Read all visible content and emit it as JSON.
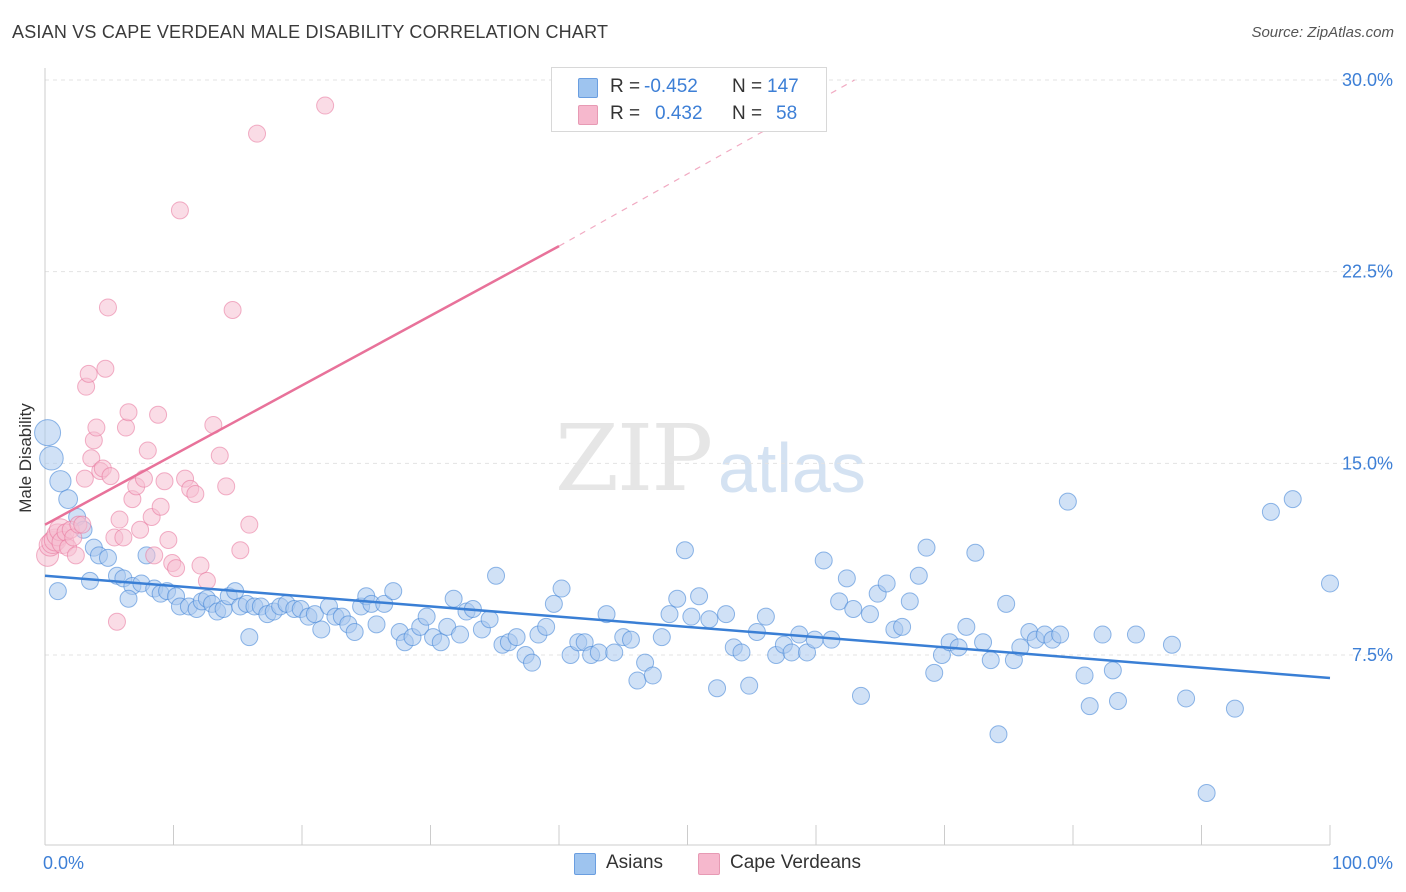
{
  "title": "ASIAN VS CAPE VERDEAN MALE DISABILITY CORRELATION CHART",
  "source": "Source: ZipAtlas.com",
  "watermark": {
    "main": "ZIP",
    "sub": "atlas"
  },
  "legend": [
    {
      "r_label": "R =",
      "r_value": "-0.452",
      "n_label": "N =",
      "n_value": "147",
      "color": "#9ec4ef"
    },
    {
      "r_label": "R =",
      "r_value": "0.432",
      "n_label": "N =",
      "n_value": "58",
      "color": "#f6b8cd"
    }
  ],
  "bottom_legend": [
    {
      "label": "Asians",
      "color": "#9ec4ef"
    },
    {
      "label": "Cape Verdeans",
      "color": "#f6b8cd"
    }
  ],
  "chart_data": {
    "type": "scatter",
    "title": "ASIAN VS CAPE VERDEAN MALE DISABILITY CORRELATION CHART",
    "xlabel": "",
    "ylabel": "Male Disability",
    "xlim": [
      0,
      100
    ],
    "ylim": [
      0,
      31
    ],
    "x_tick_labels": [
      "0.0%",
      "100.0%"
    ],
    "y_ticks": [
      7.5,
      15.0,
      22.5,
      30.0
    ],
    "y_tick_labels": [
      "7.5%",
      "15.0%",
      "22.5%",
      "30.0%"
    ],
    "grid": "horizontal dashed",
    "legend_position": "top-center",
    "series": [
      {
        "name": "Asians",
        "color": "#3a7fd5",
        "fill": "#a9c9ef",
        "r": -0.452,
        "n": 147,
        "trend": {
          "x": [
            0,
            100
          ],
          "y": [
            10.6,
            6.6
          ]
        },
        "points": [
          [
            0.2,
            16.2
          ],
          [
            0.5,
            15.2
          ],
          [
            1.2,
            14.3
          ],
          [
            1.8,
            13.6
          ],
          [
            2.5,
            12.9
          ],
          [
            3.0,
            12.4
          ],
          [
            3.8,
            11.7
          ],
          [
            4.2,
            11.4
          ],
          [
            4.9,
            11.3
          ],
          [
            5.6,
            10.6
          ],
          [
            6.1,
            10.5
          ],
          [
            6.8,
            10.2
          ],
          [
            7.5,
            10.3
          ],
          [
            7.9,
            11.4
          ],
          [
            8.5,
            10.1
          ],
          [
            9.0,
            9.9
          ],
          [
            9.5,
            10.0
          ],
          [
            10.2,
            9.8
          ],
          [
            10.5,
            9.4
          ],
          [
            11.2,
            9.4
          ],
          [
            11.8,
            9.3
          ],
          [
            12.2,
            9.6
          ],
          [
            12.6,
            9.7
          ],
          [
            13.0,
            9.5
          ],
          [
            13.4,
            9.2
          ],
          [
            13.9,
            9.3
          ],
          [
            14.3,
            9.8
          ],
          [
            14.8,
            10.0
          ],
          [
            15.2,
            9.4
          ],
          [
            15.7,
            9.5
          ],
          [
            16.3,
            9.4
          ],
          [
            16.8,
            9.4
          ],
          [
            17.3,
            9.1
          ],
          [
            17.8,
            9.2
          ],
          [
            18.3,
            9.4
          ],
          [
            18.8,
            9.5
          ],
          [
            19.4,
            9.3
          ],
          [
            19.9,
            9.3
          ],
          [
            20.5,
            9.0
          ],
          [
            21.0,
            9.1
          ],
          [
            21.5,
            8.5
          ],
          [
            22.1,
            9.4
          ],
          [
            22.6,
            9.0
          ],
          [
            23.1,
            9.0
          ],
          [
            23.6,
            8.7
          ],
          [
            24.1,
            8.4
          ],
          [
            24.6,
            9.4
          ],
          [
            25.0,
            9.8
          ],
          [
            25.4,
            9.5
          ],
          [
            25.8,
            8.7
          ],
          [
            26.4,
            9.5
          ],
          [
            27.1,
            10.0
          ],
          [
            27.6,
            8.4
          ],
          [
            28.0,
            8.0
          ],
          [
            28.6,
            8.2
          ],
          [
            29.2,
            8.6
          ],
          [
            29.7,
            9.0
          ],
          [
            30.2,
            8.2
          ],
          [
            30.8,
            8.0
          ],
          [
            31.3,
            8.6
          ],
          [
            31.8,
            9.7
          ],
          [
            32.3,
            8.3
          ],
          [
            32.8,
            9.2
          ],
          [
            33.3,
            9.3
          ],
          [
            34.0,
            8.5
          ],
          [
            34.6,
            8.9
          ],
          [
            35.1,
            10.6
          ],
          [
            35.6,
            7.9
          ],
          [
            36.1,
            8.0
          ],
          [
            36.7,
            8.2
          ],
          [
            37.4,
            7.5
          ],
          [
            37.9,
            7.2
          ],
          [
            38.4,
            8.3
          ],
          [
            39.0,
            8.6
          ],
          [
            39.6,
            9.5
          ],
          [
            40.2,
            10.1
          ],
          [
            40.9,
            7.5
          ],
          [
            41.5,
            8.0
          ],
          [
            42.0,
            8.0
          ],
          [
            42.5,
            7.5
          ],
          [
            43.1,
            7.6
          ],
          [
            43.7,
            9.1
          ],
          [
            44.3,
            7.6
          ],
          [
            45.0,
            8.2
          ],
          [
            45.6,
            8.1
          ],
          [
            46.1,
            6.5
          ],
          [
            46.7,
            7.2
          ],
          [
            47.3,
            6.7
          ],
          [
            48.0,
            8.2
          ],
          [
            48.6,
            9.1
          ],
          [
            49.2,
            9.7
          ],
          [
            49.8,
            11.6
          ],
          [
            50.3,
            9.0
          ],
          [
            50.9,
            9.8
          ],
          [
            51.7,
            8.9
          ],
          [
            52.3,
            6.2
          ],
          [
            53.0,
            9.1
          ],
          [
            53.6,
            7.8
          ],
          [
            54.2,
            7.6
          ],
          [
            54.8,
            6.3
          ],
          [
            55.4,
            8.4
          ],
          [
            56.1,
            9.0
          ],
          [
            56.9,
            7.5
          ],
          [
            57.5,
            7.9
          ],
          [
            58.1,
            7.6
          ],
          [
            58.7,
            8.3
          ],
          [
            59.3,
            7.6
          ],
          [
            59.9,
            8.1
          ],
          [
            60.6,
            11.2
          ],
          [
            61.2,
            8.1
          ],
          [
            61.8,
            9.6
          ],
          [
            62.4,
            10.5
          ],
          [
            62.9,
            9.3
          ],
          [
            63.5,
            5.9
          ],
          [
            64.2,
            9.1
          ],
          [
            64.8,
            9.9
          ],
          [
            65.5,
            10.3
          ],
          [
            66.1,
            8.5
          ],
          [
            66.7,
            8.6
          ],
          [
            67.3,
            9.6
          ],
          [
            68.0,
            10.6
          ],
          [
            68.6,
            11.7
          ],
          [
            69.2,
            6.8
          ],
          [
            69.8,
            7.5
          ],
          [
            70.4,
            8.0
          ],
          [
            71.1,
            7.8
          ],
          [
            71.7,
            8.6
          ],
          [
            72.4,
            11.5
          ],
          [
            73.0,
            8.0
          ],
          [
            73.6,
            7.3
          ],
          [
            74.2,
            4.4
          ],
          [
            74.8,
            9.5
          ],
          [
            75.4,
            7.3
          ],
          [
            75.9,
            7.8
          ],
          [
            76.6,
            8.4
          ],
          [
            77.1,
            8.1
          ],
          [
            77.8,
            8.3
          ],
          [
            78.4,
            8.1
          ],
          [
            79.0,
            8.3
          ],
          [
            79.6,
            13.5
          ],
          [
            80.9,
            6.7
          ],
          [
            81.3,
            5.5
          ],
          [
            82.3,
            8.3
          ],
          [
            83.1,
            6.9
          ],
          [
            83.5,
            5.7
          ],
          [
            84.9,
            8.3
          ],
          [
            87.7,
            7.9
          ],
          [
            88.8,
            5.8
          ],
          [
            90.4,
            2.1
          ],
          [
            92.6,
            5.4
          ],
          [
            95.4,
            13.1
          ],
          [
            97.1,
            13.6
          ],
          [
            100.0,
            10.3
          ],
          [
            1.0,
            10.0
          ],
          [
            3.5,
            10.4
          ],
          [
            6.5,
            9.7
          ],
          [
            15.9,
            8.2
          ]
        ]
      },
      {
        "name": "Cape Verdeans",
        "color": "#e8729a",
        "fill": "#f6bfd1",
        "r": 0.432,
        "n": 58,
        "trend": {
          "x": [
            0,
            40
          ],
          "y": [
            12.6,
            23.5
          ]
        },
        "trend_dashed": {
          "x": [
            40,
            63
          ],
          "y": [
            23.5,
            30.0
          ]
        },
        "points": [
          [
            0.2,
            11.4
          ],
          [
            0.4,
            11.8
          ],
          [
            0.6,
            11.9
          ],
          [
            0.8,
            12.0
          ],
          [
            1.0,
            12.2
          ],
          [
            1.2,
            12.4
          ],
          [
            1.4,
            11.9
          ],
          [
            1.6,
            12.3
          ],
          [
            1.8,
            11.7
          ],
          [
            2.0,
            12.4
          ],
          [
            2.2,
            12.1
          ],
          [
            2.4,
            11.4
          ],
          [
            2.6,
            12.6
          ],
          [
            2.9,
            12.6
          ],
          [
            3.1,
            14.4
          ],
          [
            3.2,
            18.0
          ],
          [
            3.4,
            18.5
          ],
          [
            3.6,
            15.2
          ],
          [
            3.8,
            15.9
          ],
          [
            4.0,
            16.4
          ],
          [
            4.3,
            14.7
          ],
          [
            4.5,
            14.8
          ],
          [
            4.7,
            18.7
          ],
          [
            4.9,
            21.1
          ],
          [
            5.1,
            14.5
          ],
          [
            5.4,
            12.1
          ],
          [
            5.6,
            8.8
          ],
          [
            5.8,
            12.8
          ],
          [
            6.1,
            12.1
          ],
          [
            6.3,
            16.4
          ],
          [
            6.5,
            17.0
          ],
          [
            6.8,
            13.6
          ],
          [
            7.1,
            14.1
          ],
          [
            7.4,
            12.4
          ],
          [
            7.7,
            14.4
          ],
          [
            8.0,
            15.5
          ],
          [
            8.3,
            12.9
          ],
          [
            8.5,
            11.4
          ],
          [
            8.8,
            16.9
          ],
          [
            9.0,
            13.3
          ],
          [
            9.3,
            14.3
          ],
          [
            9.6,
            12.0
          ],
          [
            9.9,
            11.1
          ],
          [
            10.2,
            10.9
          ],
          [
            10.5,
            24.9
          ],
          [
            10.9,
            14.4
          ],
          [
            11.3,
            14.0
          ],
          [
            11.7,
            13.8
          ],
          [
            12.1,
            11.0
          ],
          [
            12.6,
            10.4
          ],
          [
            13.1,
            16.5
          ],
          [
            13.6,
            15.3
          ],
          [
            14.1,
            14.1
          ],
          [
            14.6,
            21.0
          ],
          [
            15.2,
            11.6
          ],
          [
            15.9,
            12.6
          ],
          [
            16.5,
            27.9
          ],
          [
            21.8,
            29.0
          ]
        ]
      }
    ]
  }
}
